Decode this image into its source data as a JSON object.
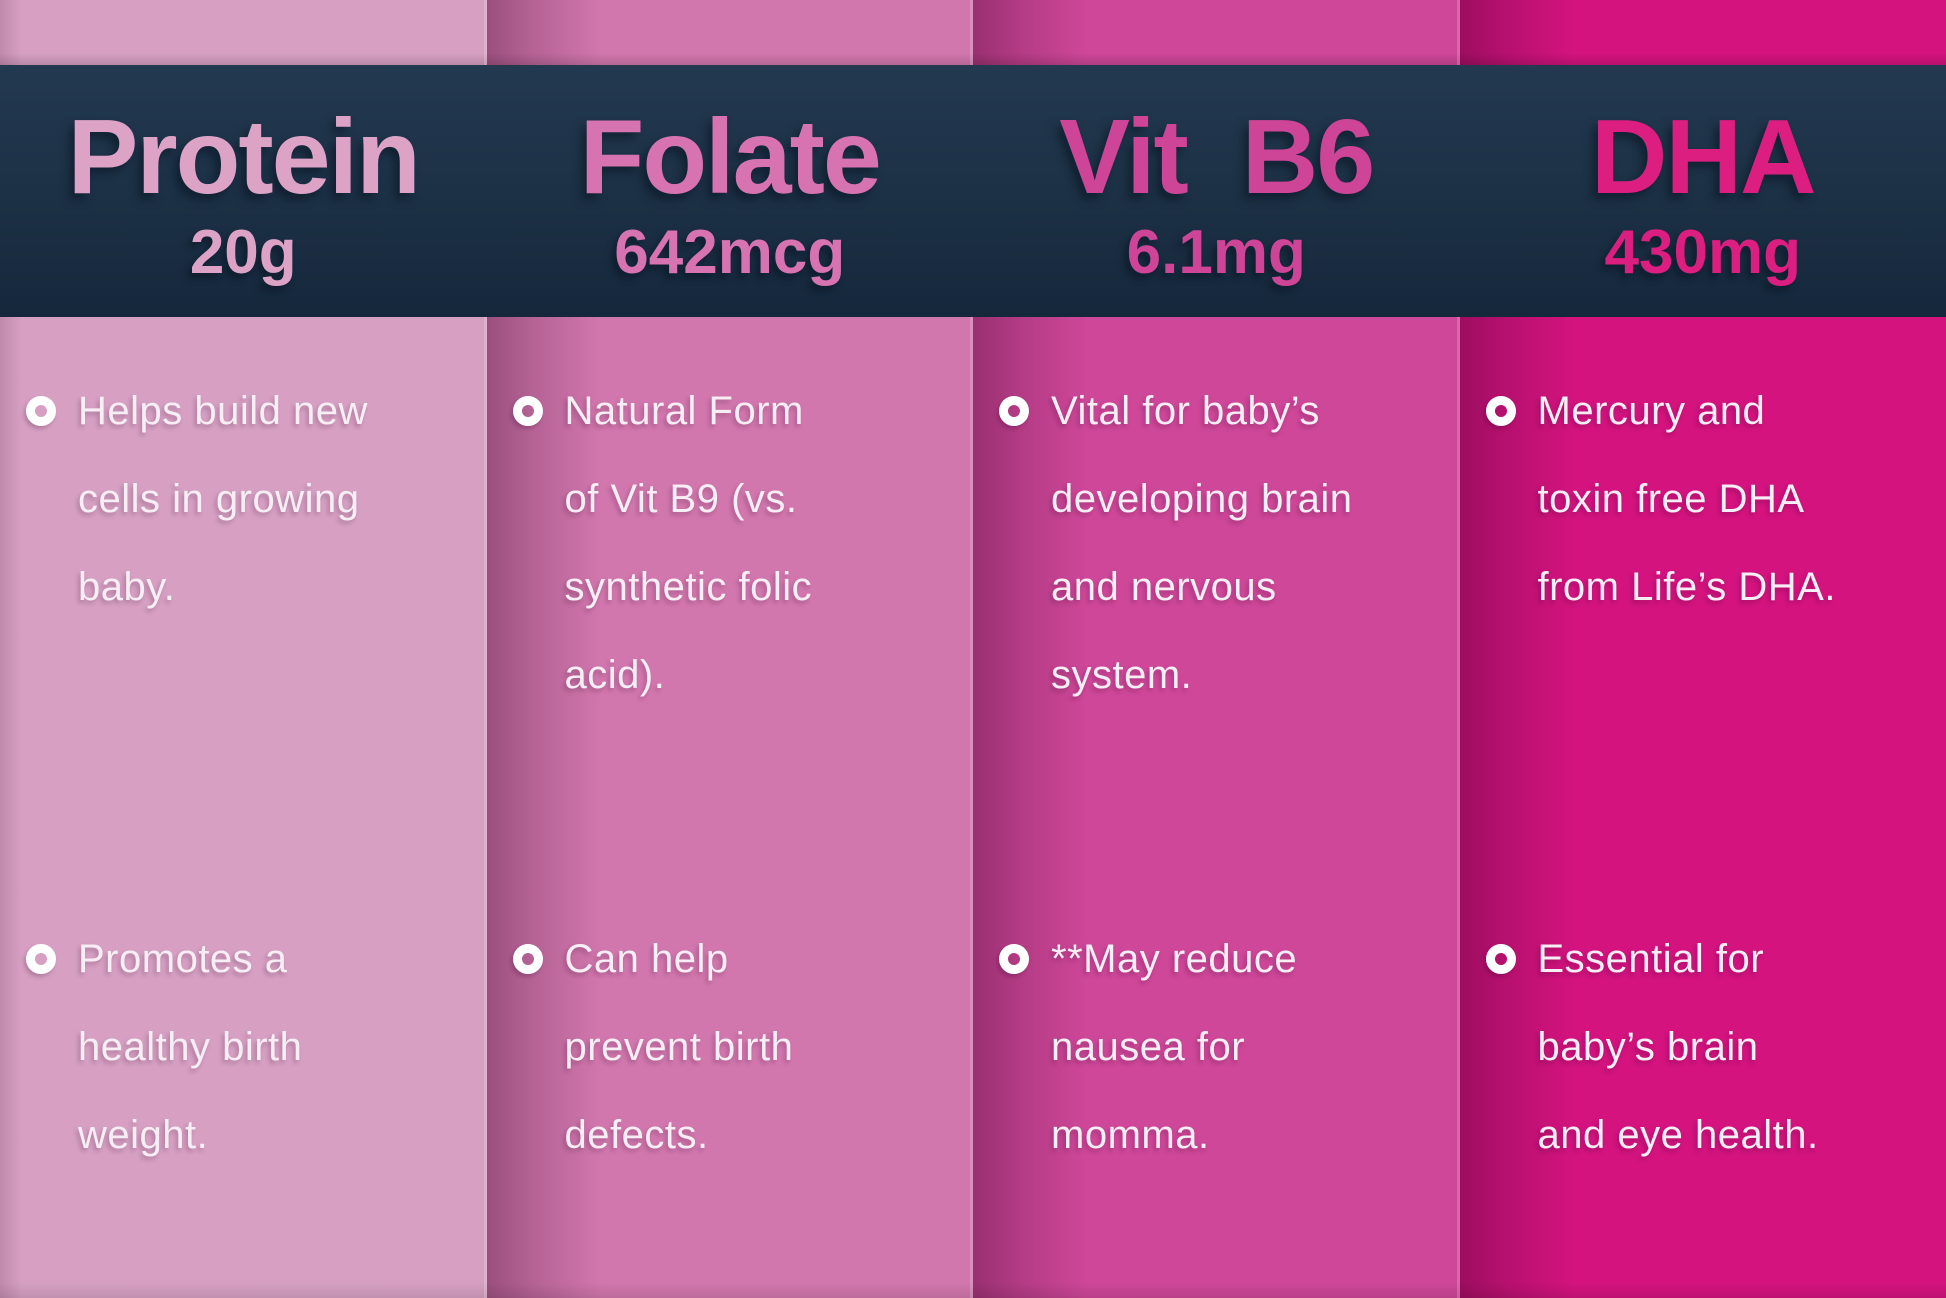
{
  "theme": {
    "header_band_top_color": "#233950",
    "header_band_bottom_color": "#15273b",
    "body_text_color": "#f7eef5",
    "bullet_color": "#ffffff"
  },
  "columns": [
    {
      "id": "protein",
      "title": "Protein",
      "amount": "20g",
      "column_color": "#d7a0c3",
      "title_color": "#dda3c7",
      "bullets": [
        {
          "text": "Helps build new\ncells in growing\nbaby."
        },
        {
          "text": "Promotes a\nhealthy birth\nweight."
        }
      ]
    },
    {
      "id": "folate",
      "title": "Folate",
      "amount": "642mcg",
      "column_color": "#d277ae",
      "title_color": "#d873b1",
      "bullets": [
        {
          "text": "Natural Form\nof Vit B9 (vs.\nsynthetic folic\nacid)."
        },
        {
          "text": "Can help\nprevent birth\ndefects."
        }
      ]
    },
    {
      "id": "vit-b6",
      "title": "Vit  B6",
      "amount": "6.1mg",
      "column_color": "#cf4799",
      "title_color": "#ce4598",
      "bullets": [
        {
          "text": "Vital for baby’s\ndeveloping brain\nand nervous\nsystem."
        },
        {
          "text": "**May reduce\nnausea for\nmomma."
        }
      ]
    },
    {
      "id": "dha",
      "title": "DHA",
      "amount": "430mg",
      "column_color": "#d4137f",
      "title_color": "#dc1e81",
      "bullets": [
        {
          "text": "Mercury and\ntoxin free DHA\nfrom Life’s DHA."
        },
        {
          "text": "Essential for\nbaby’s brain\nand eye health."
        }
      ]
    }
  ]
}
